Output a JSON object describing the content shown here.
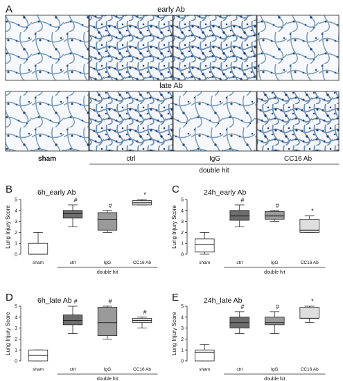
{
  "panel_a": {
    "letter": "A",
    "row1_label": "early Ab",
    "row2_label": "late Ab",
    "groups": [
      "sham",
      "ctrl",
      "IgG",
      "CC16 Ab"
    ],
    "double_hit_label": "double hit"
  },
  "chart_data": [
    {
      "letter": "B",
      "type": "box",
      "title": "6h_early Ab",
      "ylabel": "Lung Injury Score",
      "ylim": [
        0,
        5
      ],
      "yticks": [
        0,
        1,
        2,
        3,
        4,
        5
      ],
      "categories": [
        "sham",
        "ctrl",
        "IgG",
        "CC16 Ab"
      ],
      "bracket_label": "double hit",
      "boxes": [
        {
          "min": 0,
          "q1": 0,
          "median": 0,
          "q3": 1,
          "max": 2,
          "fill": "#ffffff",
          "sig": ""
        },
        {
          "min": 2.5,
          "q1": 3.3,
          "median": 3.7,
          "q3": 4,
          "max": 4.5,
          "fill": "#6d6d6d",
          "sig": "#"
        },
        {
          "min": 2,
          "q1": 2.2,
          "median": 3.2,
          "q3": 3.8,
          "max": 4,
          "fill": "#9a9a9a",
          "sig": "#"
        },
        {
          "min": 4.5,
          "q1": 4.5,
          "median": 4.7,
          "q3": 4.9,
          "max": 5,
          "fill": "#dedede",
          "sig": "*"
        }
      ]
    },
    {
      "letter": "C",
      "type": "box",
      "title": "24h_early Ab",
      "ylabel": "Lung Injury Score",
      "ylim": [
        0,
        5
      ],
      "yticks": [
        0,
        1,
        2,
        3,
        4,
        5
      ],
      "categories": [
        "sham",
        "ctrl",
        "IgG",
        "CC16 Ab"
      ],
      "bracket_label": "double hit",
      "boxes": [
        {
          "min": 0,
          "q1": 0.2,
          "median": 0.9,
          "q3": 1.4,
          "max": 2,
          "fill": "#ffffff",
          "sig": ""
        },
        {
          "min": 2.5,
          "q1": 3.1,
          "median": 3.5,
          "q3": 4,
          "max": 4.5,
          "fill": "#6d6d6d",
          "sig": "#"
        },
        {
          "min": 3,
          "q1": 3.2,
          "median": 3.5,
          "q3": 3.9,
          "max": 4,
          "fill": "#9a9a9a",
          "sig": "#"
        },
        {
          "min": 2,
          "q1": 2,
          "median": 2.2,
          "q3": 3.2,
          "max": 3.5,
          "fill": "#dedede",
          "sig": "*"
        }
      ]
    },
    {
      "letter": "D",
      "type": "box",
      "title": "6h_late Ab",
      "ylabel": "Lung Injury Score",
      "ylim": [
        0,
        5
      ],
      "yticks": [
        0,
        1,
        2,
        3,
        4,
        5
      ],
      "categories": [
        "sham",
        "ctrl",
        "IgG",
        "CC16 Ab"
      ],
      "bracket_label": "double hit",
      "boxes": [
        {
          "min": 0,
          "q1": 0,
          "median": 0.5,
          "q3": 1,
          "max": 1,
          "fill": "#ffffff",
          "sig": ""
        },
        {
          "min": 2.5,
          "q1": 3.3,
          "median": 3.7,
          "q3": 4.2,
          "max": 5,
          "fill": "#6d6d6d",
          "sig": "#"
        },
        {
          "min": 2,
          "q1": 2.3,
          "median": 3.5,
          "q3": 4.9,
          "max": 5,
          "fill": "#9a9a9a",
          "sig": "#"
        },
        {
          "min": 3,
          "q1": 3.5,
          "median": 3.7,
          "q3": 3.9,
          "max": 4,
          "fill": "#dedede",
          "sig": "#"
        }
      ]
    },
    {
      "letter": "E",
      "type": "box",
      "title": "24h_late Ab",
      "ylabel": "Lung Injury Score",
      "ylim": [
        0,
        5
      ],
      "yticks": [
        0,
        1,
        2,
        3,
        4,
        5
      ],
      "categories": [
        "sham",
        "ctrl",
        "IgG",
        "CC16 Ab"
      ],
      "bracket_label": "double hit",
      "boxes": [
        {
          "min": 0,
          "q1": 0,
          "median": 0.8,
          "q3": 1,
          "max": 1.5,
          "fill": "#ffffff",
          "sig": ""
        },
        {
          "min": 2.5,
          "q1": 3,
          "median": 3.5,
          "q3": 4,
          "max": 4.5,
          "fill": "#6d6d6d",
          "sig": "#"
        },
        {
          "min": 2.5,
          "q1": 3.3,
          "median": 3.5,
          "q3": 4,
          "max": 4.5,
          "fill": "#9a9a9a",
          "sig": "#"
        },
        {
          "min": 3.5,
          "q1": 3.9,
          "median": 3.9,
          "q3": 4.9,
          "max": 5,
          "fill": "#dedede",
          "sig": "*"
        }
      ]
    }
  ]
}
